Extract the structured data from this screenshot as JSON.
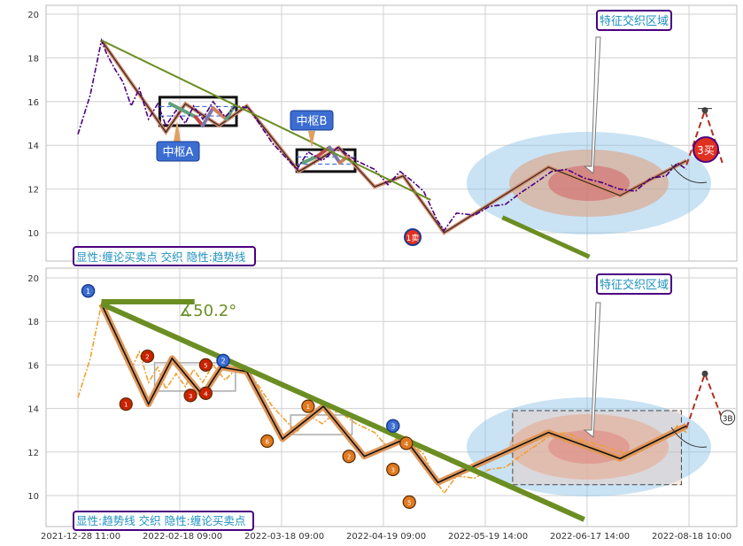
{
  "chart_data": [
    {
      "type": "line",
      "panel": "top",
      "ylim": [
        9.2,
        20.4
      ],
      "yticks": [
        10,
        12,
        14,
        16,
        18,
        20
      ],
      "grid": true,
      "price_color": "#4b0082",
      "zhongshu_labels": [
        "中枢A",
        "中枢B"
      ],
      "signal_labels": [
        "1卖",
        "3买"
      ],
      "callout_label": "特征交织区域",
      "legend_text": "显性:缠论买卖点 交织 隐性:趋势线",
      "trendline_color": "#6b8e23",
      "price_series": [
        {
          "x": 0.0,
          "y": 14.5
        },
        {
          "x": 1.2,
          "y": 16.3
        },
        {
          "x": 2.3,
          "y": 18.8
        },
        {
          "x": 2.8,
          "y": 18.2
        },
        {
          "x": 3.6,
          "y": 17.5
        },
        {
          "x": 4.4,
          "y": 16.9
        },
        {
          "x": 5.2,
          "y": 15.8
        },
        {
          "x": 6.0,
          "y": 16.6
        },
        {
          "x": 6.9,
          "y": 15.2
        },
        {
          "x": 7.8,
          "y": 15.9
        },
        {
          "x": 8.6,
          "y": 14.9
        },
        {
          "x": 9.6,
          "y": 15.6
        },
        {
          "x": 10.5,
          "y": 15.0
        },
        {
          "x": 11.3,
          "y": 15.8
        },
        {
          "x": 12.2,
          "y": 15.2
        },
        {
          "x": 13.2,
          "y": 16.0
        },
        {
          "x": 14.4,
          "y": 15.3
        },
        {
          "x": 15.4,
          "y": 15.8
        },
        {
          "x": 16.7,
          "y": 15.7
        },
        {
          "x": 18.0,
          "y": 14.8
        },
        {
          "x": 19.0,
          "y": 14.1
        },
        {
          "x": 20.2,
          "y": 13.5
        },
        {
          "x": 21.4,
          "y": 12.9
        },
        {
          "x": 22.5,
          "y": 13.7
        },
        {
          "x": 23.9,
          "y": 13.3
        },
        {
          "x": 25.4,
          "y": 13.9
        },
        {
          "x": 27.2,
          "y": 13.3
        },
        {
          "x": 29.0,
          "y": 12.9
        },
        {
          "x": 30.3,
          "y": 12.2
        },
        {
          "x": 31.5,
          "y": 12.8
        },
        {
          "x": 32.6,
          "y": 12.4
        },
        {
          "x": 33.8,
          "y": 11.9
        },
        {
          "x": 35.1,
          "y": 10.6
        },
        {
          "x": 35.8,
          "y": 10.1
        },
        {
          "x": 37.0,
          "y": 10.9
        },
        {
          "x": 38.8,
          "y": 10.8
        },
        {
          "x": 40.2,
          "y": 11.2
        },
        {
          "x": 41.8,
          "y": 11.3
        },
        {
          "x": 43.2,
          "y": 11.8
        },
        {
          "x": 44.8,
          "y": 12.3
        },
        {
          "x": 46.3,
          "y": 12.8
        },
        {
          "x": 47.8,
          "y": 12.9
        },
        {
          "x": 49.5,
          "y": 12.5
        },
        {
          "x": 51.2,
          "y": 12.3
        },
        {
          "x": 52.9,
          "y": 12.0
        },
        {
          "x": 54.5,
          "y": 11.9
        },
        {
          "x": 56.0,
          "y": 12.5
        },
        {
          "x": 57.5,
          "y": 12.6
        },
        {
          "x": 58.6,
          "y": 13.2
        },
        {
          "x": 59.5,
          "y": 12.9
        }
      ],
      "zigzag": [
        {
          "x": 2.3,
          "y": 18.8
        },
        {
          "x": 8.6,
          "y": 14.6
        },
        {
          "x": 10.5,
          "y": 15.9
        },
        {
          "x": 13.8,
          "y": 14.9
        },
        {
          "x": 16.5,
          "y": 15.8
        },
        {
          "x": 21.6,
          "y": 12.8
        },
        {
          "x": 25.5,
          "y": 13.9
        },
        {
          "x": 29.0,
          "y": 12.1
        },
        {
          "x": 31.8,
          "y": 12.6
        },
        {
          "x": 35.8,
          "y": 10.0
        },
        {
          "x": 46.0,
          "y": 13.0
        },
        {
          "x": 53.0,
          "y": 11.7
        },
        {
          "x": 59.5,
          "y": 13.3
        }
      ],
      "forecast": [
        {
          "x": 59.5,
          "y": 13.1
        },
        {
          "x": 61.3,
          "y": 15.6
        },
        {
          "x": 63.0,
          "y": 13.2
        }
      ],
      "trendline": [
        {
          "x": 2.3,
          "y": 18.8
        },
        {
          "x": 34.5,
          "y": 11.5
        }
      ],
      "trendline_extension": [
        {
          "x": 41.5,
          "y": 10.7
        },
        {
          "x": 50.0,
          "y": 8.9
        }
      ],
      "zhongshu_boxes": [
        {
          "x0": 8.0,
          "x1": 15.5,
          "y0": 14.9,
          "y1": 16.2
        },
        {
          "x0": 21.4,
          "x1": 27.1,
          "y0": 12.8,
          "y1": 13.8
        }
      ]
    },
    {
      "type": "line",
      "panel": "bottom",
      "ylim": [
        9.2,
        20.4
      ],
      "yticks": [
        10,
        12,
        14,
        16,
        18,
        20
      ],
      "grid": true,
      "price_color": "#f0a030",
      "callout_label": "特征交织区域",
      "angle_label": "∡50.2°",
      "legend_text": "显性:趋势线 交织 隐性:缠论买卖点",
      "forecast_end_label": "3B",
      "badge_blue": [
        "1",
        "2",
        "3"
      ],
      "badge_red": [
        "1",
        "2",
        "3",
        "4",
        "5",
        "6"
      ],
      "trendline": [
        {
          "x": 2.3,
          "y": 18.8
        },
        {
          "x": 49.5,
          "y": 8.9
        }
      ],
      "horizontal_ref": {
        "x0": 2.3,
        "x1": 11.4,
        "y": 18.9
      },
      "zigzag": [
        {
          "x": 2.3,
          "y": 18.8
        },
        {
          "x": 6.9,
          "y": 14.2
        },
        {
          "x": 9.2,
          "y": 16.3
        },
        {
          "x": 12.2,
          "y": 14.6
        },
        {
          "x": 14.0,
          "y": 15.9
        },
        {
          "x": 16.5,
          "y": 15.7
        },
        {
          "x": 20.0,
          "y": 12.6
        },
        {
          "x": 24.0,
          "y": 14.1
        },
        {
          "x": 28.0,
          "y": 11.8
        },
        {
          "x": 32.0,
          "y": 12.6
        },
        {
          "x": 35.2,
          "y": 10.6
        },
        {
          "x": 46.0,
          "y": 12.9
        },
        {
          "x": 53.0,
          "y": 11.7
        },
        {
          "x": 59.5,
          "y": 13.2
        }
      ],
      "forecast": [
        {
          "x": 59.5,
          "y": 13.1
        },
        {
          "x": 61.3,
          "y": 15.6
        },
        {
          "x": 63.0,
          "y": 13.5
        }
      ],
      "highlight_box": {
        "x0": 42.5,
        "x1": 59.0,
        "y0": 10.5,
        "y1": 13.9
      },
      "xtick_labels": [
        "2021-12-28 11:00",
        "2022-02-18 09:00",
        "2022-03-18 09:00",
        "2022-04-19 09:00",
        "2022-05-19 14:00",
        "2022-06-17 14:00",
        "2022-08-18 10:00"
      ]
    }
  ]
}
